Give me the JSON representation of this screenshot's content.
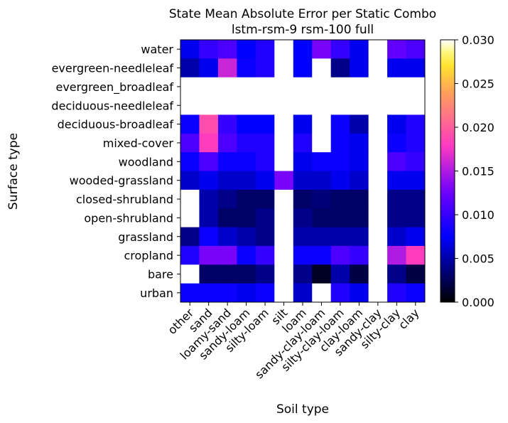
{
  "chart_data": {
    "type": "heatmap",
    "title": "State Mean Absolute Error per Static Combo",
    "subtitle": "lstm-rsm-9 rsm-100 full",
    "xlabel": "Soil type",
    "ylabel": "Surface type",
    "colormap": "gnuplot2",
    "colorbar": {
      "range": [
        0.0,
        0.03
      ],
      "ticks": [
        "0.000",
        "0.005",
        "0.010",
        "0.015",
        "0.020",
        "0.025",
        "0.030"
      ]
    },
    "x_categories": [
      "other",
      "sand",
      "loamy-sand",
      "sandy-loam",
      "silty-loam",
      "silt",
      "loam",
      "sandy-clay-loam",
      "silty-clay-loam",
      "clay-loam",
      "sandy-clay",
      "silty-clay",
      "clay"
    ],
    "y_categories": [
      "water",
      "evergreen-needleleaf",
      "evergreen_broadleaf",
      "deciduous-needleleaf",
      "deciduous-broadleaf",
      "mixed-cover",
      "woodland",
      "wooded-grassland",
      "closed-shrubland",
      "open-shrubland",
      "grassland",
      "cropland",
      "bare",
      "urban"
    ],
    "values": [
      [
        0.007,
        0.01,
        0.011,
        0.0075,
        0.009,
        null,
        0.0075,
        0.013,
        0.01,
        0.007,
        null,
        0.012,
        0.011
      ],
      [
        0.005,
        0.007,
        0.016,
        0.008,
        0.009,
        null,
        0.0075,
        null,
        0.004,
        0.007,
        null,
        0.007,
        0.007
      ],
      [
        null,
        null,
        null,
        null,
        null,
        null,
        null,
        null,
        null,
        null,
        null,
        null,
        null
      ],
      [
        null,
        null,
        null,
        null,
        null,
        null,
        null,
        null,
        null,
        null,
        null,
        null,
        null
      ],
      [
        0.008,
        0.019,
        0.01,
        0.0075,
        0.0075,
        null,
        0.007,
        null,
        0.008,
        0.005,
        null,
        0.007,
        0.009
      ],
      [
        0.011,
        0.018,
        0.011,
        0.009,
        0.009,
        null,
        0.009,
        null,
        0.008,
        0.007,
        null,
        0.008,
        0.009
      ],
      [
        0.008,
        0.011,
        0.008,
        0.008,
        0.009,
        null,
        0.007,
        0.008,
        0.008,
        0.007,
        null,
        0.011,
        0.01
      ],
      [
        0.006,
        0.007,
        0.006,
        0.006,
        0.007,
        0.013,
        0.006,
        0.006,
        0.007,
        0.006,
        null,
        0.007,
        0.007
      ],
      [
        null,
        0.005,
        0.004,
        0.003,
        0.003,
        null,
        0.003,
        0.0035,
        0.003,
        0.003,
        null,
        0.004,
        0.004
      ],
      [
        null,
        0.005,
        0.003,
        0.003,
        0.004,
        null,
        0.004,
        0.003,
        0.003,
        0.003,
        null,
        0.004,
        0.004
      ],
      [
        0.004,
        0.008,
        0.006,
        0.005,
        0.004,
        null,
        0.005,
        0.005,
        0.005,
        0.005,
        null,
        0.006,
        0.007
      ],
      [
        0.009,
        0.013,
        0.013,
        0.008,
        0.01,
        null,
        0.008,
        0.008,
        0.011,
        0.01,
        null,
        0.015,
        0.018
      ],
      [
        null,
        0.003,
        0.003,
        0.003,
        0.004,
        null,
        0.004,
        0.001,
        0.005,
        0.002,
        null,
        0.004,
        0.002
      ],
      [
        0.008,
        0.008,
        0.008,
        0.007,
        0.008,
        null,
        0.006,
        null,
        0.009,
        0.007,
        null,
        0.009,
        0.008
      ]
    ]
  }
}
